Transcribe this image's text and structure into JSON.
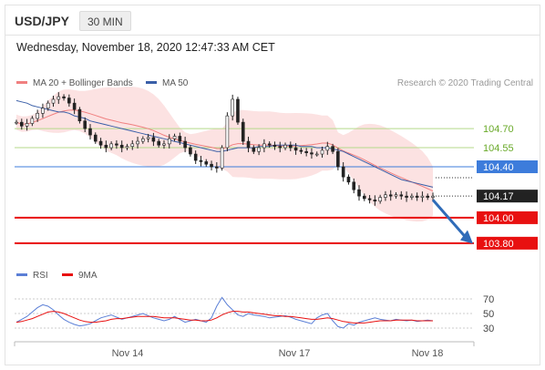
{
  "header": {
    "symbol": "USD/JPY",
    "timeframe": "30 MIN",
    "datetime": "Wednesday, November 18, 2020 12:47:33 AM CET"
  },
  "chart_data": [
    {
      "type": "candlestick",
      "legend_location": "top-left",
      "legend": [
        {
          "label": "MA 20 + Bollinger Bands",
          "color": "#f08080"
        },
        {
          "label": "MA 50",
          "color": "#3a5fa8"
        }
      ],
      "credit": "Research © 2020 Trading Central",
      "ylim": [
        103.62,
        105.08
      ],
      "x_ticks": [
        "Nov 14",
        "Nov 17",
        "Nov 18"
      ],
      "levels": [
        {
          "label": "104.70",
          "value": 104.7,
          "kind": "resistance",
          "color": "#b5d98a",
          "label_color": "#6aaa2a"
        },
        {
          "label": "104.55",
          "value": 104.55,
          "kind": "resistance",
          "color": "#b5d98a",
          "label_color": "#6aaa2a"
        },
        {
          "label": "104.40",
          "value": 104.4,
          "kind": "pivot",
          "color": "#3d7cdb",
          "label_color": "#ffffff",
          "label_bg": "#3d7cdb"
        },
        {
          "label": "104.00",
          "value": 104.0,
          "kind": "support",
          "color": "#e81010",
          "label_color": "#ffffff",
          "label_bg": "#e81010"
        },
        {
          "label": "103.80",
          "value": 103.8,
          "kind": "support",
          "color": "#e81010",
          "label_color": "#ffffff",
          "label_bg": "#e81010"
        }
      ],
      "last_price": {
        "label": "104.17",
        "value": 104.17,
        "color": "#222222"
      },
      "forecast_arrow": {
        "from": 104.14,
        "to": 103.81,
        "color": "#2f6bb8"
      },
      "close_series": [
        104.75,
        104.72,
        104.74,
        104.78,
        104.82,
        104.86,
        104.9,
        104.93,
        104.95,
        104.94,
        104.9,
        104.85,
        104.76,
        104.7,
        104.65,
        104.6,
        104.57,
        104.55,
        104.58,
        104.57,
        104.55,
        104.56,
        104.58,
        104.6,
        104.62,
        104.63,
        104.6,
        104.57,
        104.58,
        104.62,
        104.64,
        104.6,
        104.55,
        104.5,
        104.45,
        104.44,
        104.42,
        104.4,
        104.39,
        104.55,
        104.8,
        104.93,
        104.75,
        104.6,
        104.55,
        104.52,
        104.55,
        104.58,
        104.57,
        104.56,
        104.55,
        104.57,
        104.55,
        104.53,
        104.52,
        104.51,
        104.5,
        104.5,
        104.53,
        104.56,
        104.52,
        104.4,
        104.32,
        104.28,
        104.22,
        104.17,
        104.15,
        104.14,
        104.13,
        104.16,
        104.18,
        104.17,
        104.18,
        104.17,
        104.16,
        104.17,
        104.16,
        104.17,
        104.16,
        104.17
      ],
      "ma50": [
        104.92,
        104.91,
        104.9,
        104.88,
        104.87,
        104.86,
        104.85,
        104.84,
        104.83,
        104.83,
        104.82,
        104.8,
        104.79,
        104.78,
        104.76,
        104.75,
        104.74,
        104.73,
        104.72,
        104.71,
        104.7,
        104.69,
        104.68,
        104.67,
        104.66,
        104.65,
        104.64,
        104.63,
        104.62,
        104.61,
        104.6,
        104.59,
        104.58,
        104.57,
        104.56,
        104.55,
        104.54,
        104.53,
        104.52,
        104.52,
        104.53,
        104.54,
        104.55,
        104.55,
        104.55,
        104.55,
        104.56,
        104.56,
        104.56,
        104.57,
        104.57,
        104.57,
        104.57,
        104.57,
        104.56,
        104.56,
        104.56,
        104.55,
        104.55,
        104.55,
        104.54,
        104.53,
        104.52,
        104.5,
        104.48,
        104.46,
        104.44,
        104.42,
        104.4,
        104.38,
        104.36,
        104.34,
        104.32,
        104.3,
        104.29,
        104.28,
        104.27,
        104.26,
        104.25,
        104.24
      ]
    },
    {
      "type": "line",
      "legend": [
        {
          "label": "RSI",
          "color": "#5b7fd6"
        },
        {
          "label": "9MA",
          "color": "#e81010"
        }
      ],
      "ylim": [
        20,
        80
      ],
      "y_ticks": [
        70,
        50,
        30
      ],
      "guides": [
        70,
        50,
        30
      ],
      "rsi": [
        38,
        42,
        46,
        52,
        58,
        62,
        60,
        55,
        48,
        42,
        38,
        35,
        33,
        34,
        36,
        40,
        44,
        46,
        48,
        45,
        42,
        44,
        46,
        48,
        50,
        47,
        44,
        42,
        40,
        42,
        46,
        42,
        38,
        40,
        42,
        40,
        38,
        44,
        60,
        72,
        62,
        55,
        48,
        46,
        50,
        48,
        47,
        46,
        44,
        45,
        46,
        47,
        45,
        42,
        40,
        38,
        36,
        44,
        48,
        50,
        40,
        32,
        30,
        36,
        34,
        38,
        40,
        42,
        44,
        42,
        41,
        40,
        42,
        41,
        40,
        41,
        39,
        40,
        41,
        40
      ],
      "ma9": [
        38,
        39,
        41,
        43,
        46,
        49,
        52,
        53,
        52,
        50,
        47,
        44,
        41,
        39,
        38,
        38,
        39,
        40,
        42,
        43,
        43,
        44,
        45,
        46,
        46,
        46,
        46,
        45,
        44,
        44,
        44,
        43,
        42,
        41,
        41,
        40,
        40,
        41,
        44,
        48,
        51,
        53,
        53,
        52,
        52,
        51,
        50,
        49,
        48,
        47,
        47,
        46,
        46,
        45,
        44,
        43,
        42,
        42,
        43,
        44,
        43,
        41,
        39,
        38,
        37,
        37,
        37,
        38,
        39,
        40,
        40,
        40,
        41,
        41,
        41,
        41,
        40,
        40,
        40,
        40
      ]
    }
  ]
}
